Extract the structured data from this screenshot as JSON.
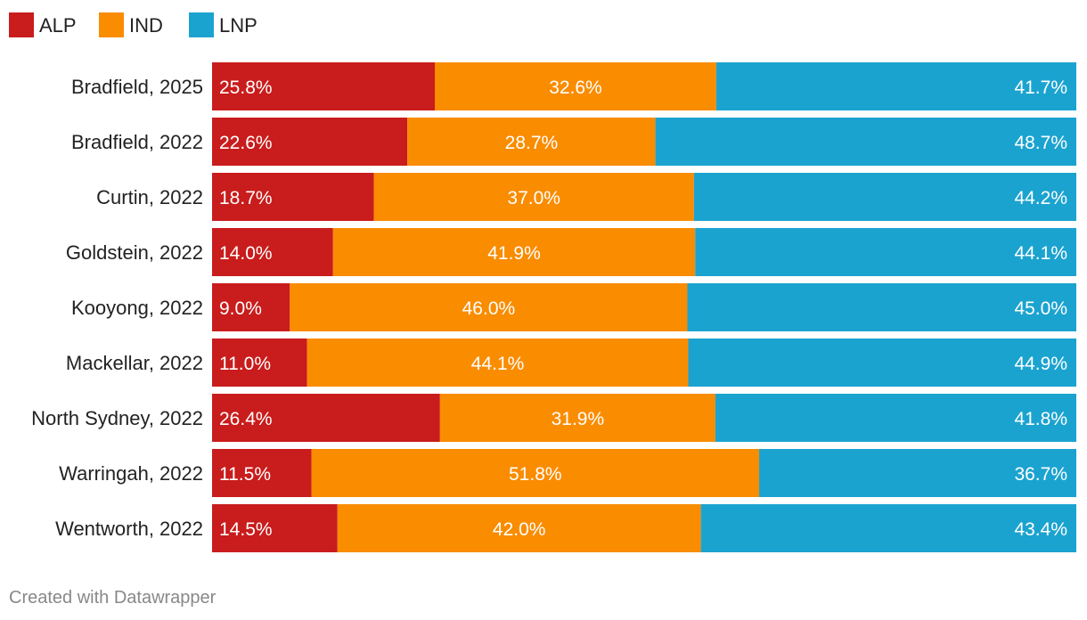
{
  "chart_data": {
    "type": "bar",
    "orientation": "horizontal",
    "stacked": true,
    "legend_position": "top-left",
    "value_format": "percent_one_decimal",
    "categories": [
      "Bradfield, 2025",
      "Bradfield, 2022",
      "Curtin, 2022",
      "Goldstein, 2022",
      "Kooyong, 2022",
      "Mackellar, 2022",
      "North Sydney, 2022",
      "Warringah, 2022",
      "Wentworth, 2022"
    ],
    "series": [
      {
        "name": "ALP",
        "color": "#c91c1c",
        "label_align": "start",
        "values": [
          25.8,
          22.6,
          18.7,
          14.0,
          9.0,
          11.0,
          26.4,
          11.5,
          14.5
        ]
      },
      {
        "name": "IND",
        "color": "#fa8c00",
        "label_align": "middle",
        "values": [
          32.6,
          28.7,
          37.0,
          41.9,
          46.0,
          44.1,
          31.9,
          51.8,
          42.0
        ]
      },
      {
        "name": "LNP",
        "color": "#1ba3d0",
        "label_align": "end",
        "values": [
          41.7,
          48.7,
          44.2,
          44.1,
          45.0,
          44.9,
          41.8,
          36.7,
          43.4
        ]
      }
    ],
    "xlim": [
      0,
      100
    ],
    "grid": false
  },
  "footer": {
    "credit": "Created with Datawrapper"
  }
}
